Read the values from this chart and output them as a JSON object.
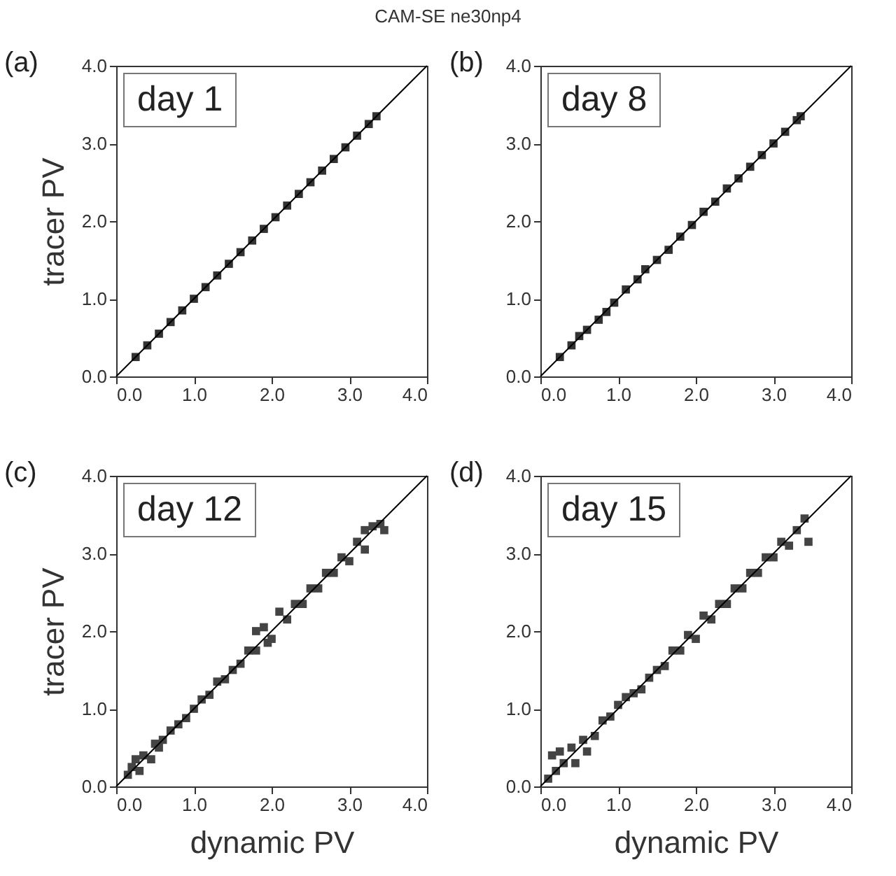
{
  "chart_data": [
    {
      "type": "scatter",
      "title": "CAM-SE ne30np4",
      "ylabel": "tracer PV",
      "annotations": [
        "(a)",
        "day 1"
      ],
      "xlim": [
        0,
        4
      ],
      "ylim": [
        0,
        4
      ],
      "marker": "square",
      "xticks": [
        {
          "value": 0,
          "label": "0.0"
        },
        {
          "value": 1,
          "label": "1.0"
        },
        {
          "value": 2,
          "label": "2.0"
        },
        {
          "value": 3,
          "label": "3.0"
        },
        {
          "value": 4,
          "label": "4.0"
        }
      ],
      "yticks": [
        {
          "value": 0,
          "label": "0.0"
        },
        {
          "value": 1,
          "label": "1.0"
        },
        {
          "value": 2,
          "label": "2.0"
        },
        {
          "value": 3,
          "label": "3.0"
        },
        {
          "value": 4,
          "label": "4.0"
        }
      ],
      "series": [
        {
          "type": "scatter",
          "color": "#333333",
          "x": [
            0.25,
            0.4,
            0.55,
            0.7,
            0.85,
            1.0,
            1.15,
            1.3,
            1.45,
            1.6,
            1.75,
            1.9,
            2.05,
            2.2,
            2.35,
            2.5,
            2.65,
            2.8,
            2.95,
            3.1,
            3.25,
            3.35
          ],
          "values": [
            0.25,
            0.4,
            0.55,
            0.7,
            0.85,
            1.0,
            1.15,
            1.3,
            1.45,
            1.6,
            1.75,
            1.9,
            2.05,
            2.2,
            2.35,
            2.5,
            2.65,
            2.8,
            2.95,
            3.1,
            3.25,
            3.35
          ]
        },
        {
          "type": "line",
          "color": "#000000",
          "marker": "none",
          "x": [
            0,
            4
          ],
          "values": [
            0,
            4
          ]
        }
      ]
    },
    {
      "type": "scatter",
      "annotations": [
        "(b)",
        "day 8"
      ],
      "xlim": [
        0,
        4
      ],
      "ylim": [
        0,
        4
      ],
      "marker": "square",
      "xticks": [
        {
          "value": 0,
          "label": "0.0"
        },
        {
          "value": 1,
          "label": "1.0"
        },
        {
          "value": 2,
          "label": "2.0"
        },
        {
          "value": 3,
          "label": "3.0"
        },
        {
          "value": 4,
          "label": "4.0"
        }
      ],
      "yticks": [
        {
          "value": 0,
          "label": "0.0"
        },
        {
          "value": 1,
          "label": "1.0"
        },
        {
          "value": 2,
          "label": "2.0"
        },
        {
          "value": 3,
          "label": "3.0"
        },
        {
          "value": 4,
          "label": "4.0"
        }
      ],
      "series": [
        {
          "type": "scatter",
          "color": "#333333",
          "x": [
            0.25,
            0.4,
            0.5,
            0.6,
            0.75,
            0.85,
            0.95,
            1.1,
            1.25,
            1.35,
            1.5,
            1.65,
            1.8,
            1.95,
            2.1,
            2.25,
            2.4,
            2.55,
            2.7,
            2.85,
            3.0,
            3.15,
            3.3,
            3.35
          ],
          "values": [
            0.25,
            0.4,
            0.52,
            0.6,
            0.73,
            0.83,
            0.95,
            1.12,
            1.25,
            1.38,
            1.5,
            1.63,
            1.8,
            1.95,
            2.12,
            2.25,
            2.42,
            2.55,
            2.7,
            2.85,
            3.0,
            3.15,
            3.3,
            3.35
          ]
        },
        {
          "type": "line",
          "color": "#000000",
          "marker": "none",
          "x": [
            0,
            4
          ],
          "values": [
            0,
            4
          ]
        }
      ]
    },
    {
      "type": "scatter",
      "xlabel": "dynamic PV",
      "ylabel": "tracer PV",
      "annotations": [
        "(c)",
        "day 12"
      ],
      "xlim": [
        0,
        4
      ],
      "ylim": [
        0,
        4
      ],
      "marker": "square",
      "xticks": [
        {
          "value": 0,
          "label": "0.0"
        },
        {
          "value": 1,
          "label": "1.0"
        },
        {
          "value": 2,
          "label": "2.0"
        },
        {
          "value": 3,
          "label": "3.0"
        },
        {
          "value": 4,
          "label": "4.0"
        }
      ],
      "yticks": [
        {
          "value": 0,
          "label": "0.0"
        },
        {
          "value": 1,
          "label": "1.0"
        },
        {
          "value": 2,
          "label": "2.0"
        },
        {
          "value": 3,
          "label": "3.0"
        },
        {
          "value": 4,
          "label": "4.0"
        }
      ],
      "series": [
        {
          "type": "scatter",
          "color": "#444444",
          "x": [
            0.15,
            0.2,
            0.25,
            0.3,
            0.35,
            0.45,
            0.5,
            0.55,
            0.6,
            0.7,
            0.8,
            0.9,
            1.0,
            1.1,
            1.2,
            1.3,
            1.4,
            1.5,
            1.6,
            1.7,
            1.8,
            1.8,
            1.9,
            1.95,
            2.0,
            2.1,
            2.2,
            2.3,
            2.4,
            2.5,
            2.6,
            2.7,
            2.8,
            2.9,
            3.0,
            3.1,
            3.2,
            3.2,
            3.3,
            3.4,
            3.45
          ],
          "values": [
            0.15,
            0.25,
            0.35,
            0.2,
            0.4,
            0.35,
            0.55,
            0.5,
            0.6,
            0.72,
            0.8,
            0.88,
            1.0,
            1.12,
            1.18,
            1.35,
            1.38,
            1.5,
            1.58,
            1.75,
            1.75,
            2.0,
            2.05,
            1.85,
            1.9,
            2.25,
            2.15,
            2.35,
            2.35,
            2.55,
            2.55,
            2.75,
            2.75,
            2.95,
            2.9,
            3.15,
            3.05,
            3.3,
            3.35,
            3.38,
            3.3
          ]
        },
        {
          "type": "line",
          "color": "#000000",
          "marker": "none",
          "x": [
            0,
            4
          ],
          "values": [
            0,
            4
          ]
        }
      ]
    },
    {
      "type": "scatter",
      "xlabel": "dynamic PV",
      "annotations": [
        "(d)",
        "day 15"
      ],
      "xlim": [
        0,
        4
      ],
      "ylim": [
        0,
        4
      ],
      "marker": "square",
      "xticks": [
        {
          "value": 0,
          "label": "0.0"
        },
        {
          "value": 1,
          "label": "1.0"
        },
        {
          "value": 2,
          "label": "2.0"
        },
        {
          "value": 3,
          "label": "3.0"
        },
        {
          "value": 4,
          "label": "4.0"
        }
      ],
      "yticks": [
        {
          "value": 0,
          "label": "0.0"
        },
        {
          "value": 1,
          "label": "1.0"
        },
        {
          "value": 2,
          "label": "2.0"
        },
        {
          "value": 3,
          "label": "3.0"
        },
        {
          "value": 4,
          "label": "4.0"
        }
      ],
      "series": [
        {
          "type": "scatter",
          "color": "#444444",
          "x": [
            0.1,
            0.15,
            0.2,
            0.25,
            0.3,
            0.4,
            0.45,
            0.55,
            0.6,
            0.7,
            0.8,
            0.9,
            1.0,
            1.1,
            1.2,
            1.3,
            1.4,
            1.5,
            1.6,
            1.7,
            1.8,
            1.9,
            2.0,
            2.1,
            2.2,
            2.3,
            2.4,
            2.5,
            2.6,
            2.7,
            2.8,
            2.9,
            3.0,
            3.1,
            3.2,
            3.3,
            3.4,
            3.45
          ],
          "values": [
            0.1,
            0.4,
            0.2,
            0.45,
            0.3,
            0.5,
            0.3,
            0.6,
            0.45,
            0.65,
            0.85,
            0.9,
            1.05,
            1.15,
            1.2,
            1.25,
            1.4,
            1.5,
            1.55,
            1.75,
            1.75,
            1.95,
            1.9,
            2.2,
            2.15,
            2.35,
            2.35,
            2.55,
            2.55,
            2.75,
            2.75,
            2.95,
            2.95,
            3.15,
            3.1,
            3.3,
            3.45,
            3.15
          ]
        },
        {
          "type": "line",
          "color": "#000000",
          "marker": "none",
          "x": [
            0,
            4
          ],
          "values": [
            0,
            4
          ]
        }
      ]
    }
  ]
}
